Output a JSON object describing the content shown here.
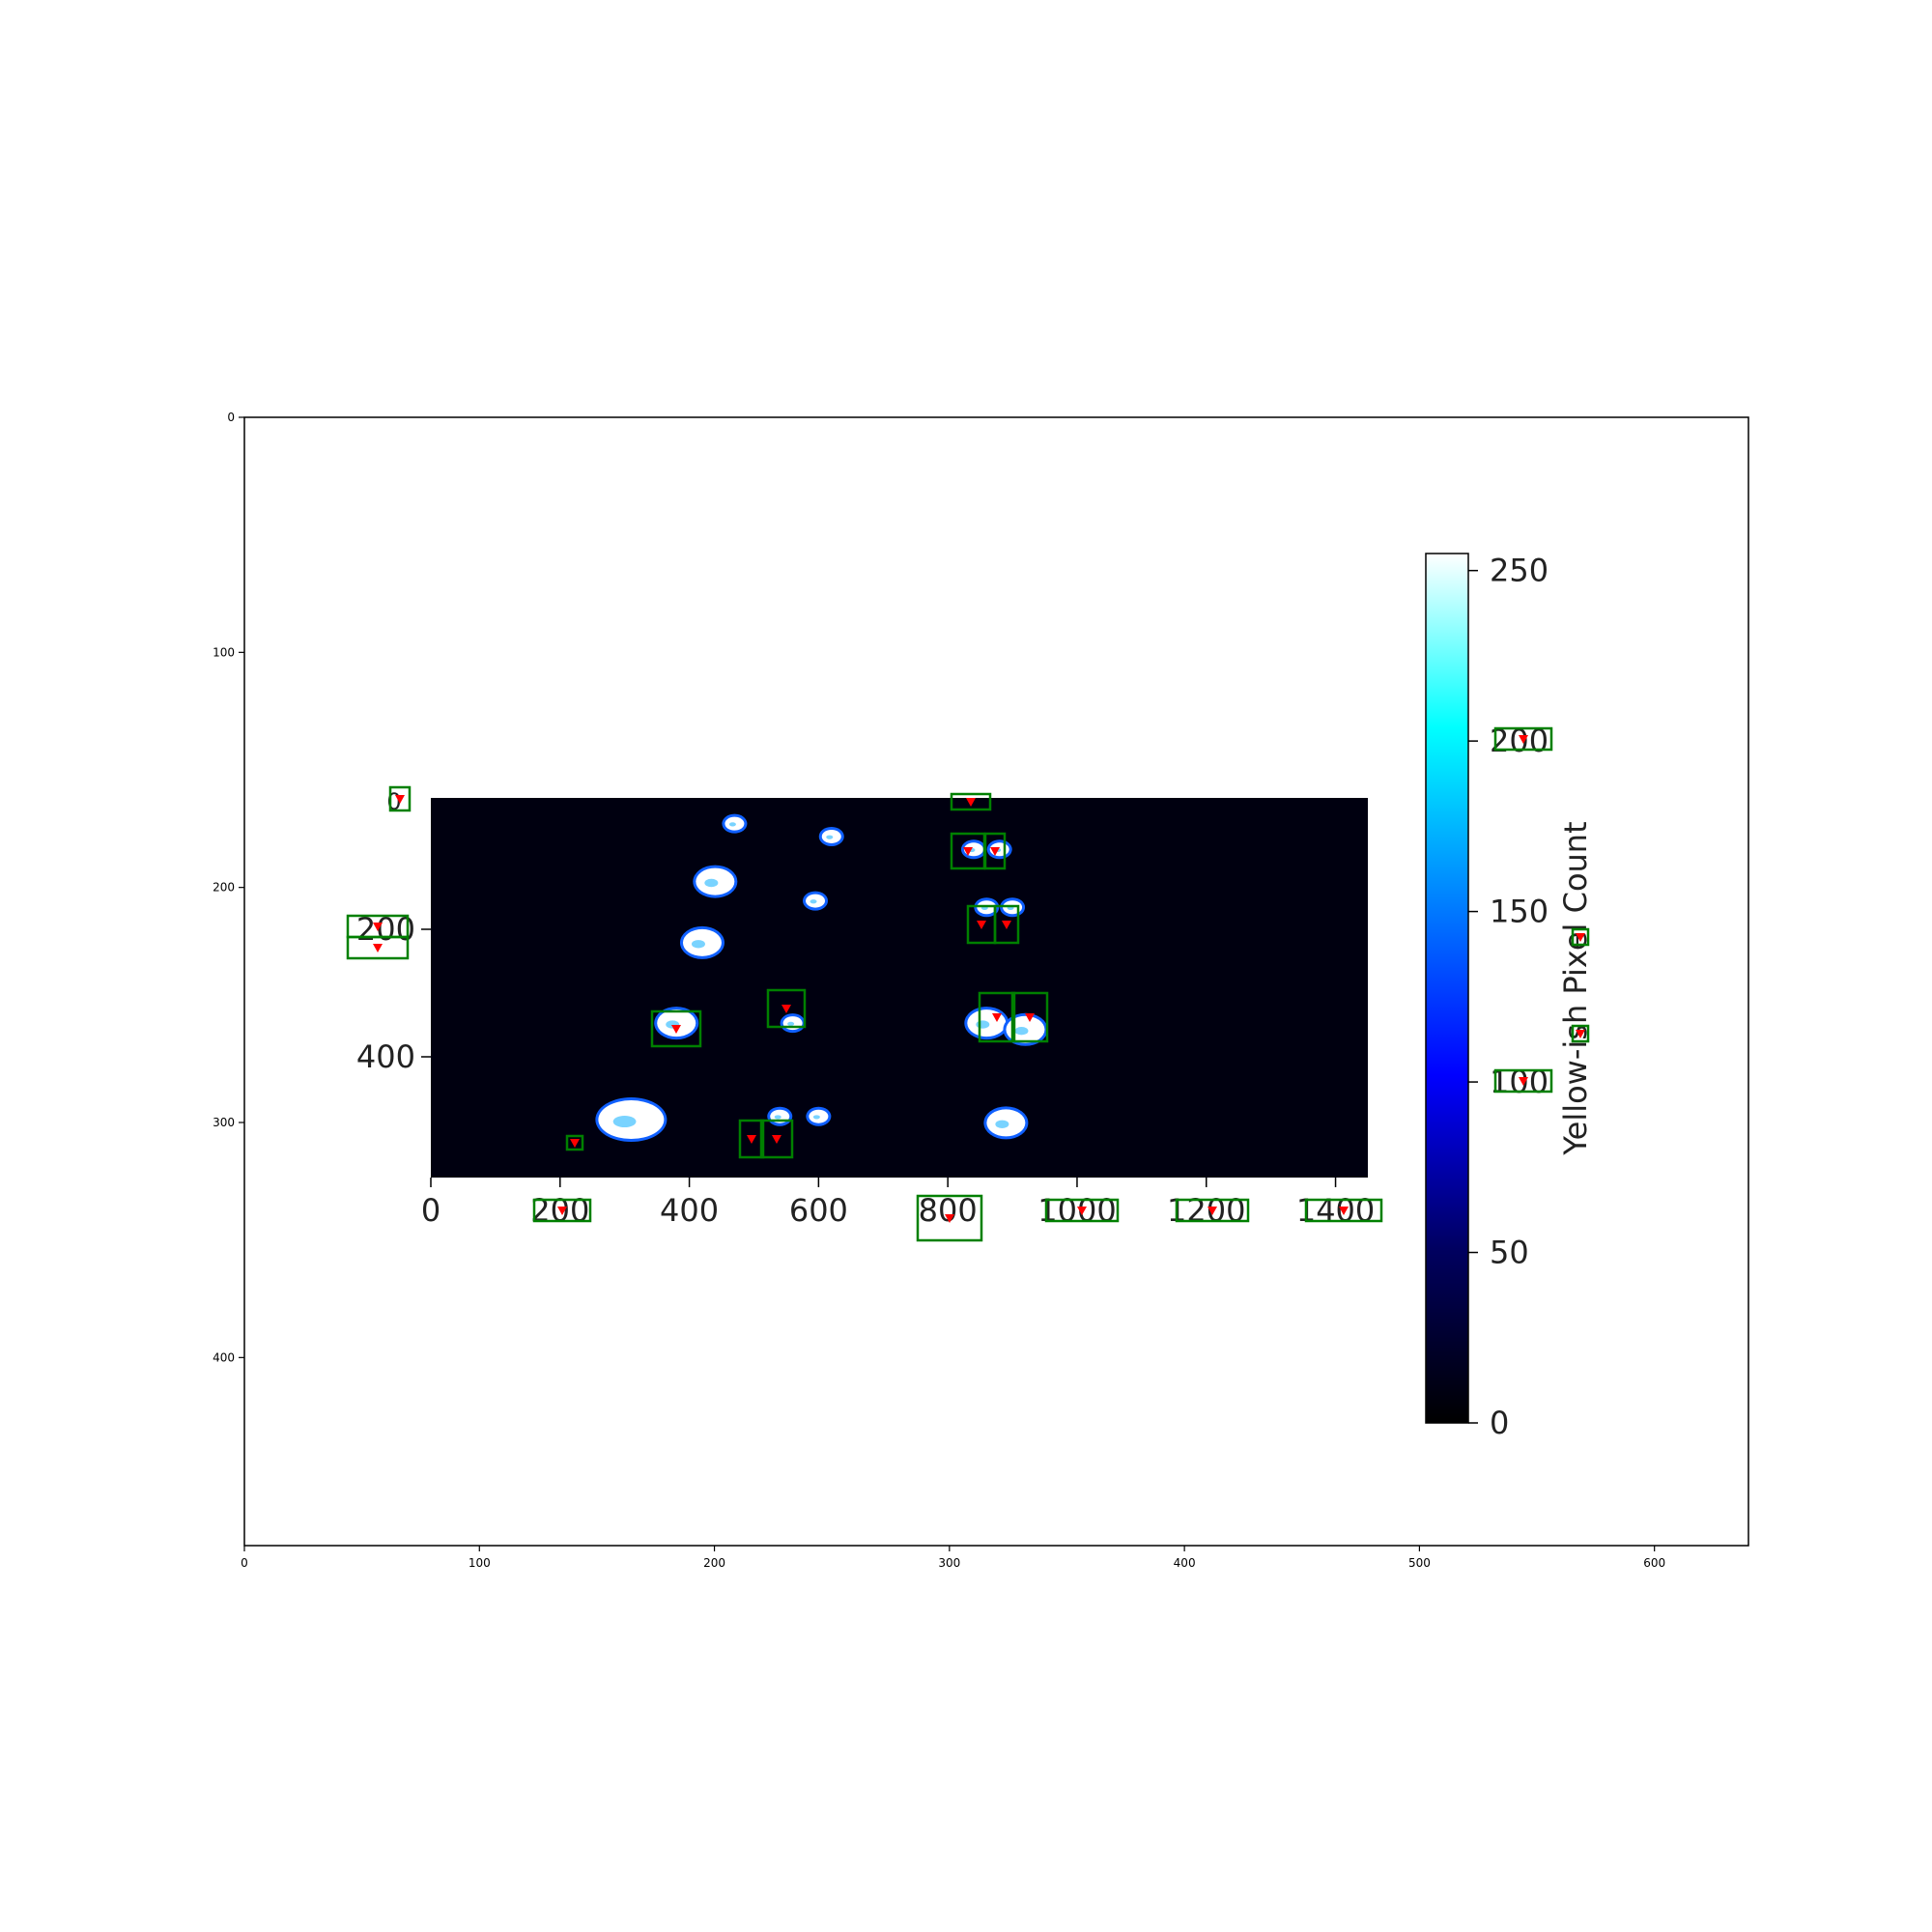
{
  "chart_data": {
    "type": "heatmap",
    "outer_axes": {
      "x_ticks": [
        "0",
        "100",
        "200",
        "300",
        "400",
        "500",
        "600"
      ],
      "y_ticks": [
        "0",
        "100",
        "200",
        "300",
        "400"
      ],
      "xlim": [
        0,
        640
      ],
      "ylim": [
        480,
        0
      ]
    },
    "inner_plot": {
      "x_ticks": [
        "0",
        "200",
        "400",
        "600",
        "800",
        "1000",
        "1200",
        "1400"
      ],
      "y_ticks": [
        "200",
        "400"
      ],
      "background_color": "#000010",
      "blobs": [
        {
          "x": 470,
          "y": 40,
          "size": "small"
        },
        {
          "x": 440,
          "y": 130,
          "size": "medium"
        },
        {
          "x": 420,
          "y": 225,
          "size": "medium"
        },
        {
          "x": 380,
          "y": 350,
          "size": "medium"
        },
        {
          "x": 310,
          "y": 500,
          "size": "large"
        },
        {
          "x": 540,
          "y": 495,
          "size": "small"
        },
        {
          "x": 600,
          "y": 495,
          "size": "small"
        },
        {
          "x": 620,
          "y": 60,
          "size": "small"
        },
        {
          "x": 595,
          "y": 160,
          "size": "small"
        },
        {
          "x": 560,
          "y": 350,
          "size": "small"
        },
        {
          "x": 840,
          "y": 80,
          "size": "small"
        },
        {
          "x": 880,
          "y": 80,
          "size": "small"
        },
        {
          "x": 860,
          "y": 170,
          "size": "small"
        },
        {
          "x": 900,
          "y": 170,
          "size": "small"
        },
        {
          "x": 860,
          "y": 350,
          "size": "medium"
        },
        {
          "x": 920,
          "y": 360,
          "size": "medium"
        },
        {
          "x": 890,
          "y": 505,
          "size": "medium"
        }
      ]
    },
    "colorbar": {
      "label": "Yellow-ish Pixel Count",
      "ticks": [
        "0",
        "50",
        "100",
        "150",
        "200",
        "250"
      ],
      "range": [
        0,
        255
      ],
      "colormap": [
        "#000000",
        "#000080",
        "#0000ff",
        "#0080ff",
        "#00ffff",
        "#ffffff"
      ]
    },
    "annotation_box_color": "#008000",
    "annotation_marker_color": "#ff0000"
  }
}
